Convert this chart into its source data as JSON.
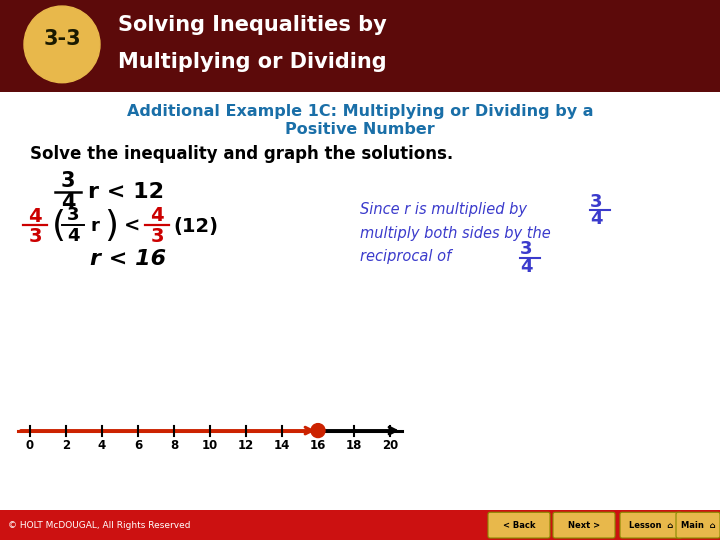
{
  "header_bg_color": "#5C0A0A",
  "header_badge_bg": "#E8B84B",
  "footer_bg_color": "#CC1111",
  "footer_text": "© HOLT McDOUGAL, All Rights Reserved",
  "title_line1": "Additional Example 1C: Multiplying or Dividing by a",
  "title_line2": "Positive Number",
  "title_color": "#1a6fa8",
  "body_bg": "#ffffff",
  "nl_filled_color": "#CC2200",
  "nl_line_color": "#000000",
  "number_line_min": 0,
  "number_line_max": 20,
  "number_line_step": 2,
  "open_circle_val": 16
}
